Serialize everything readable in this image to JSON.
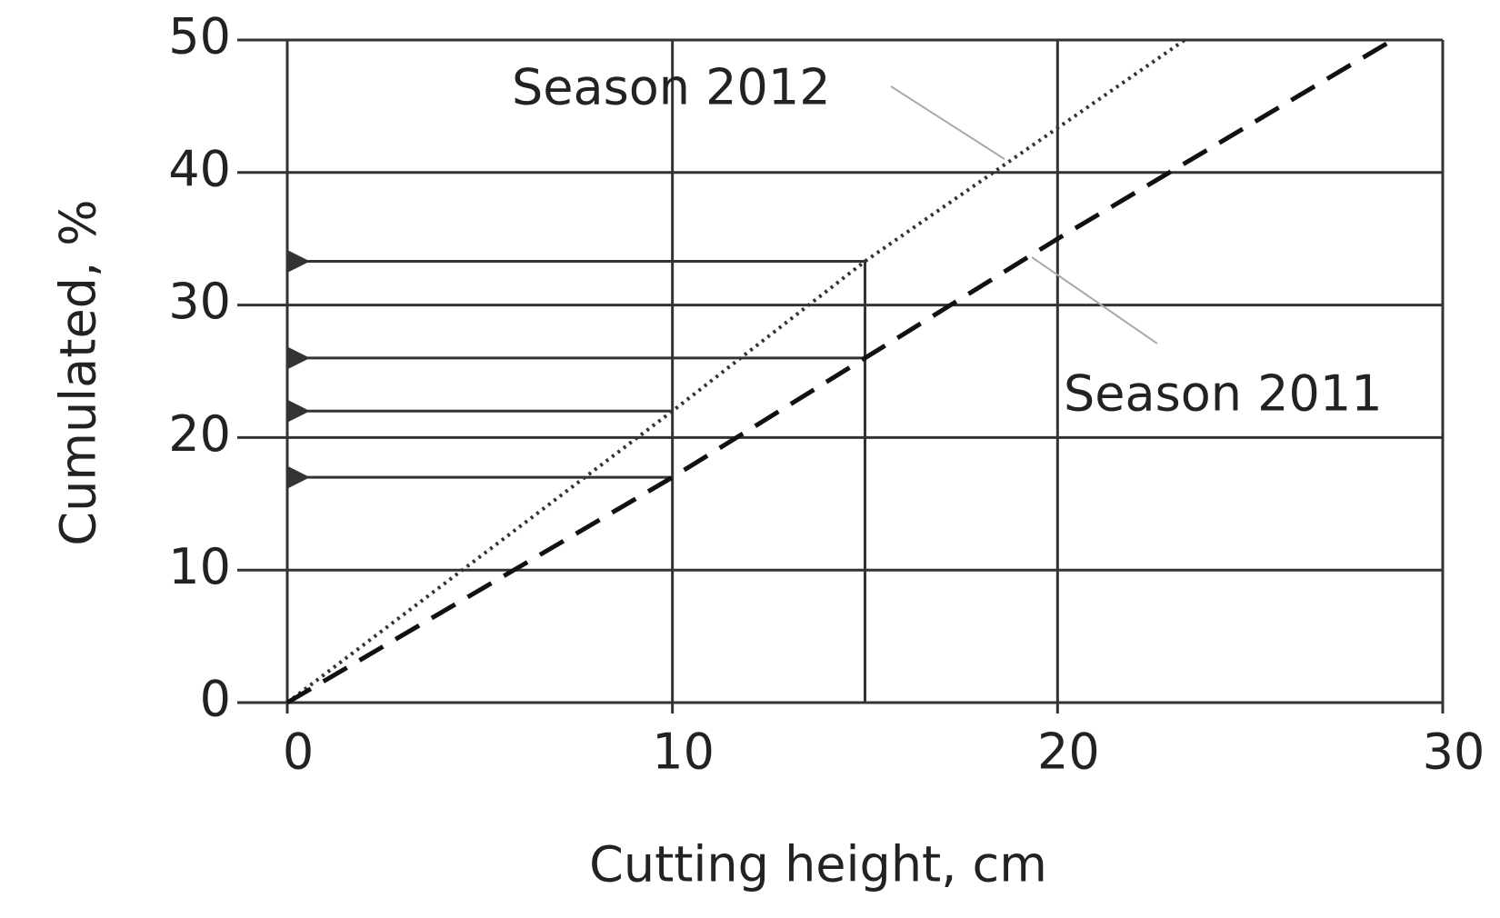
{
  "chart_data": {
    "type": "line",
    "x_label": "Cutting height, cm",
    "y_label": "Cumulated, %",
    "series": [
      {
        "name": "Season 2012",
        "color": "#333333",
        "style": "dotted",
        "x": [
          0,
          10,
          15,
          23.3
        ],
        "values": [
          0,
          22,
          33.3,
          50
        ]
      },
      {
        "name": "Season 2011",
        "color": "#111111",
        "style": "dashed",
        "x": [
          0,
          10,
          15,
          20,
          28.7
        ],
        "values": [
          0,
          17,
          26,
          35,
          50
        ]
      }
    ],
    "xlim": [
      0,
      30
    ],
    "xticks": [
      0,
      10,
      20,
      30
    ],
    "ylim": [
      0,
      50
    ],
    "yticks": [
      0,
      10,
      20,
      30,
      40,
      50
    ],
    "grid": true
  }
}
